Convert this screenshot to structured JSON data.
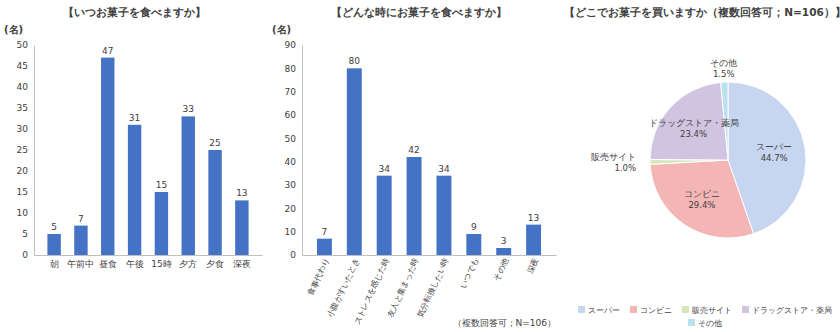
{
  "chart_data": [
    {
      "type": "bar",
      "title": "【いつお菓子を食べますか】",
      "y_label": "(名)",
      "categories": [
        "朝",
        "午前中",
        "昼食",
        "午後",
        "15時",
        "夕方",
        "夕食",
        "深夜"
      ],
      "values": [
        5,
        7,
        47,
        31,
        15,
        33,
        25,
        13
      ],
      "color": "#4472c4",
      "ylim": [
        0,
        50
      ],
      "yticks": [
        0,
        5,
        10,
        15,
        20,
        25,
        30,
        35,
        40,
        45,
        50
      ],
      "grid": false,
      "data_labels": true
    },
    {
      "type": "bar",
      "title": "【どんな時にお菓子を食べますか】",
      "y_label": "(名)",
      "annotation": "（複数回答可；N=106）",
      "categories": [
        "食事代わり",
        "小腹がすいたとき",
        "ストレスを感じた時",
        "友人と集まった時",
        "気分転換したい時",
        "いつでも",
        "その他",
        "深夜"
      ],
      "values": [
        7,
        80,
        34,
        42,
        34,
        9,
        3,
        13
      ],
      "color": "#4472c4",
      "ylim": [
        0,
        90
      ],
      "yticks": [
        0,
        10,
        20,
        30,
        40,
        50,
        60,
        70,
        80,
        90
      ],
      "grid": false,
      "data_labels": true
    },
    {
      "type": "pie",
      "title": "【どこでお菓子を買いますか（複数回答可；N=106）】",
      "categories": [
        "スーパー",
        "コンビニ",
        "販売サイト",
        "ドラッグストア・薬局",
        "その他"
      ],
      "values": [
        44.7,
        29.4,
        1.0,
        23.4,
        1.5
      ],
      "value_labels": [
        "44.7%",
        "29.4%",
        "1.0%",
        "23.4%",
        "1.5%"
      ],
      "colors": [
        "#c6d6f0",
        "#f4b5b5",
        "#d8e6bd",
        "#d0c4e0",
        "#b9e0ee"
      ],
      "data_labels": true,
      "legend": "bottom"
    }
  ]
}
